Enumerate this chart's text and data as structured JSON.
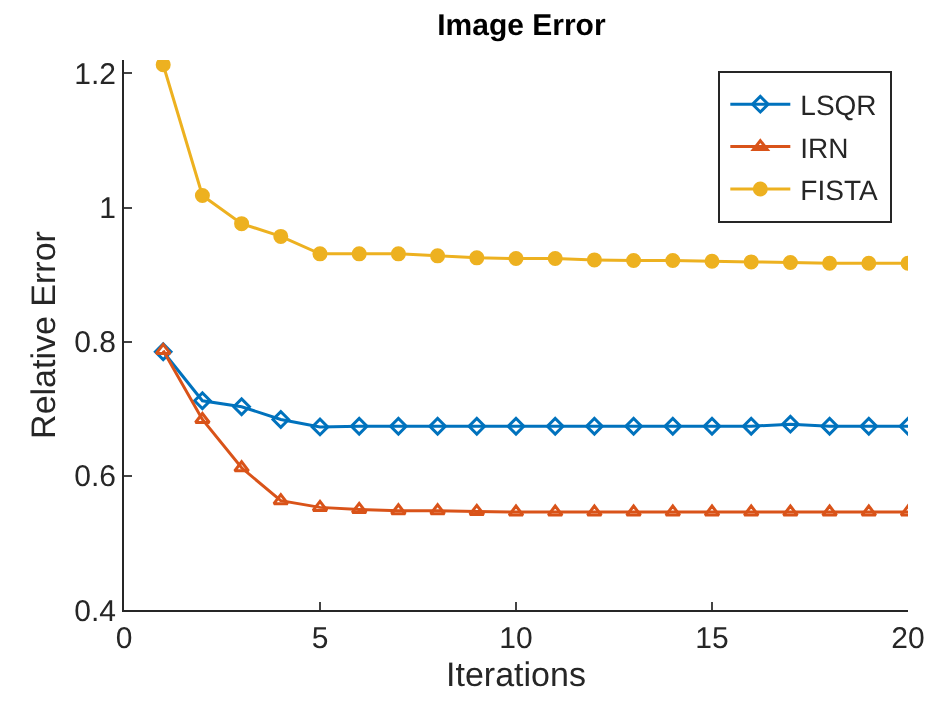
{
  "chart_data": {
    "type": "line",
    "title": "Image Error",
    "xlabel": "Iterations",
    "ylabel": "Relative Error",
    "x": [
      1,
      2,
      3,
      4,
      5,
      6,
      7,
      8,
      9,
      10,
      11,
      12,
      13,
      14,
      15,
      16,
      17,
      18,
      19,
      20
    ],
    "series": [
      {
        "name": "LSQR",
        "color": "#0072bd",
        "marker": "diamond",
        "values": [
          0.785,
          0.712,
          0.703,
          0.684,
          0.673,
          0.674,
          0.674,
          0.674,
          0.674,
          0.674,
          0.674,
          0.674,
          0.674,
          0.674,
          0.674,
          0.674,
          0.677,
          0.674,
          0.674,
          0.674
        ]
      },
      {
        "name": "IRN",
        "color": "#d95319",
        "marker": "triangle",
        "values": [
          0.787,
          0.684,
          0.612,
          0.563,
          0.553,
          0.55,
          0.548,
          0.548,
          0.547,
          0.546,
          0.546,
          0.546,
          0.546,
          0.546,
          0.546,
          0.546,
          0.546,
          0.546,
          0.546,
          0.546
        ]
      },
      {
        "name": "FISTA",
        "color": "#edb120",
        "marker": "circle",
        "values": [
          1.213,
          1.018,
          0.976,
          0.957,
          0.931,
          0.931,
          0.931,
          0.928,
          0.925,
          0.924,
          0.924,
          0.922,
          0.921,
          0.921,
          0.92,
          0.919,
          0.918,
          0.917,
          0.917,
          0.917
        ]
      }
    ],
    "xlim": [
      0,
      20
    ],
    "xticks": [
      0,
      5,
      10,
      15,
      20
    ],
    "ylim": [
      0.4,
      1.22
    ],
    "yticks": [
      0.4,
      0.6,
      0.8,
      1,
      1.2
    ],
    "legend": "top right",
    "line_style": "solid"
  }
}
